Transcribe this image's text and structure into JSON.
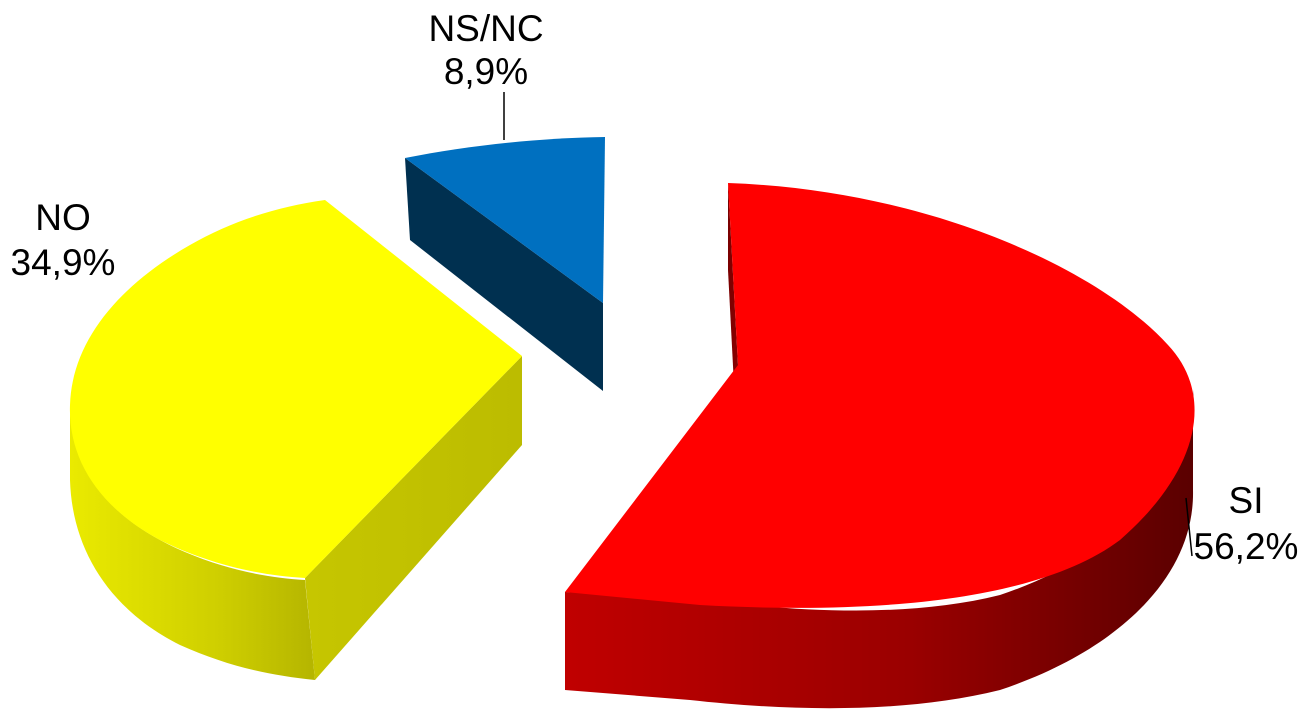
{
  "chart_data": {
    "type": "pie",
    "title": "",
    "style": "3d-exploded",
    "slices": [
      {
        "label": "SI",
        "value": 56.2,
        "value_text": "56,2%",
        "color": "#ff0000",
        "side_color": "#a00000"
      },
      {
        "label": "NO",
        "value": 34.9,
        "value_text": "34,9%",
        "color": "#ffff00",
        "side_color": "#c8c800"
      },
      {
        "label": "NS/NC",
        "value": 8.9,
        "value_text": "8,9%",
        "color": "#0070c0",
        "side_color": "#002e52"
      }
    ]
  }
}
